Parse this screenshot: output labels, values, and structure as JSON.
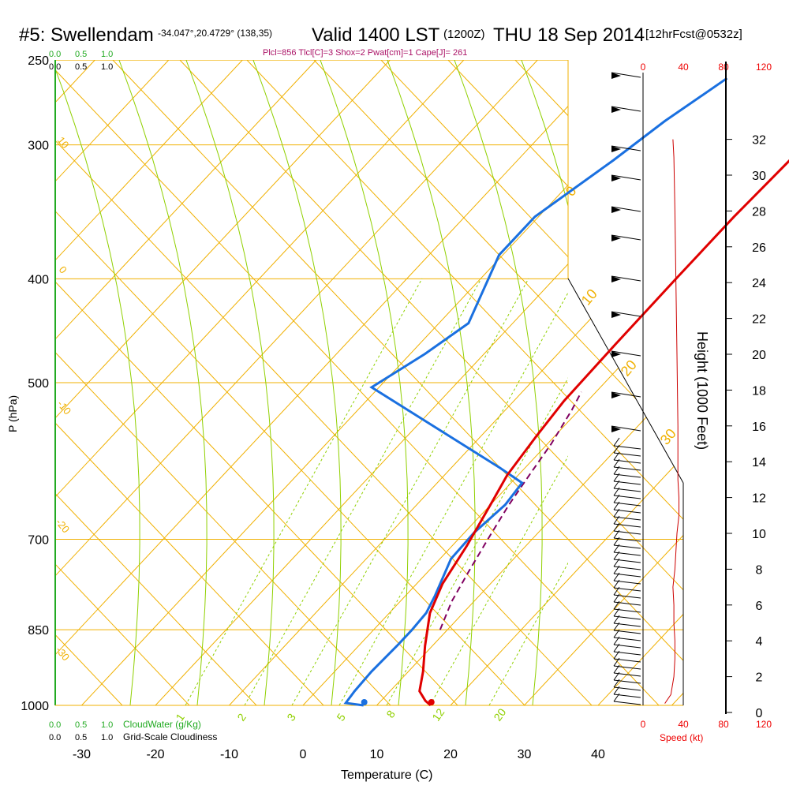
{
  "header": {
    "station": "#5: Swellendam",
    "coords": "-34.047°,20.4729° (138,35)",
    "valid": "Valid 1400 LST",
    "zulu": "(1200Z)",
    "date": "THU 18 Sep 2014",
    "forecast": "[12hrFcst@0532z]",
    "indices": "Plcl=856 Tlcl[C]=3 Shox=2 Pwat[cm]=1 Cape[J]= 261"
  },
  "colors": {
    "isotherm": "#f0b000",
    "mixing": "#90d000",
    "temp": "#e00000",
    "dew": "#1a70e0",
    "parcel": "#800060",
    "cloud": "#22aa22",
    "speed": "#ee0000",
    "speed_profile": "#cc0000"
  },
  "chart_data": {
    "type": "line",
    "title": "#5: Swellendam",
    "xlabel": "Temperature (C)",
    "ylabel": "P (hPa)",
    "ylabel_right": "Height (1000 Feet)",
    "x_ticks": [
      -30,
      -20,
      -10,
      0,
      10,
      20,
      30,
      40
    ],
    "p_ticks": [
      250,
      300,
      400,
      500,
      700,
      850,
      1000
    ],
    "height_ticks": [
      0,
      2,
      4,
      6,
      8,
      10,
      12,
      14,
      16,
      18,
      20,
      22,
      24,
      26,
      28,
      30,
      32
    ],
    "dry_adiabat_labels": [
      "0",
      "10",
      "20",
      "30"
    ],
    "moist_adiabat_labels": [
      "10",
      "0",
      "-10",
      "-20",
      "-30"
    ],
    "mixing_ratio_labels": [
      "1",
      "2",
      "3",
      "5",
      "8",
      "12",
      "20"
    ],
    "series": [
      {
        "name": "Temperature",
        "x": [
          17.3,
          16,
          14,
          12,
          9,
          5.5,
          3.5,
          2,
          0,
          -1.5,
          -2.5,
          -3.2,
          -3.4,
          -3.5,
          -3.5,
          -3,
          -2,
          -0.5
        ],
        "y": [
          1000,
          990,
          970,
          930,
          880,
          820,
          770,
          710,
          650,
          610,
          560,
          520,
          460,
          400,
          350,
          300,
          280,
          255
        ]
      },
      {
        "name": "Dew Point",
        "x": [
          8.2,
          5.5,
          5.2,
          5.0,
          5.2,
          5.2,
          5.0,
          4.0,
          1.5,
          1.3,
          2.0,
          1.5,
          -3.5,
          -31,
          -28,
          -26,
          -30.5,
          -30.5,
          -27,
          -25,
          -22
        ],
        "y": [
          1000,
          995,
          970,
          930,
          880,
          850,
          820,
          790,
          730,
          690,
          650,
          620,
          600,
          505,
          470,
          440,
          380,
          350,
          310,
          285,
          260
        ]
      },
      {
        "name": "Parcel",
        "x": [
          9,
          7,
          5.5,
          4,
          2.5,
          1.5,
          0.5,
          -1,
          -2
        ],
        "y": [
          850,
          800,
          750,
          700,
          650,
          610,
          570,
          530,
          510
        ]
      }
    ],
    "wind_speed": {
      "label": "Speed (kt)",
      "ticks": [
        0,
        40,
        80,
        120
      ],
      "speed": [
        6,
        12,
        15,
        16,
        16,
        15,
        15,
        14,
        16,
        17,
        18,
        20,
        20,
        19,
        19,
        18,
        17,
        16,
        15,
        14
      ],
      "height": [
        0.5,
        1,
        2,
        3,
        4,
        5,
        6,
        7,
        8,
        9,
        10,
        11,
        12,
        13,
        16,
        20,
        24,
        28,
        31,
        32
      ]
    },
    "cloud_scale": {
      "cloud_water_label": "CloudWater (g/Kg)",
      "cloudiness_label": "Grid-Scale Cloudiness",
      "ticks": [
        "0.0",
        "0.5",
        "1.0"
      ]
    }
  }
}
